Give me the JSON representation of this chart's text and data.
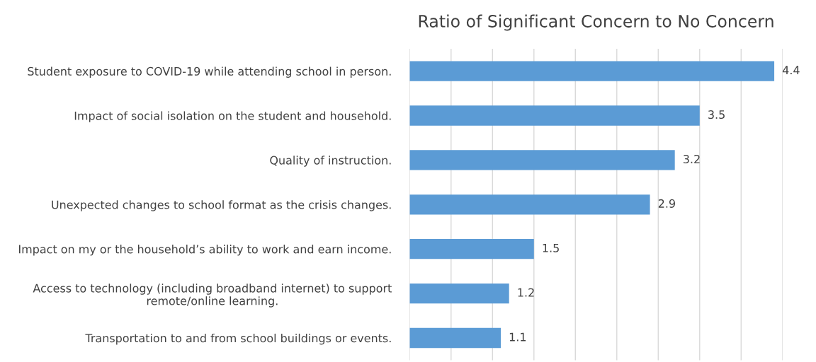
{
  "chart_data": {
    "type": "bar",
    "orientation": "horizontal",
    "title": "Ratio of Significant Concern to No Concern",
    "categories": [
      "Student exposure to COVID-19 while attending school in person.",
      "Impact of social isolation on the student and household.",
      "Quality of instruction.",
      "Unexpected changes to school format as the crisis changes.",
      "Impact on my or the household’s ability to work and earn income.",
      "Access to technology (including broadband internet) to support\nremote/online learning.",
      "Transportation to and from school buildings or events."
    ],
    "values": [
      4.4,
      3.5,
      3.2,
      2.9,
      1.5,
      1.2,
      1.1
    ],
    "color": "#5b9bd5",
    "xlim": [
      0,
      4.5
    ],
    "xticks": [
      {
        "value": 0,
        "label": null
      },
      {
        "value": 0.5,
        "label": null
      },
      {
        "value": 1,
        "label": null
      },
      {
        "value": 1.5,
        "label": null
      },
      {
        "value": 2,
        "label": null
      },
      {
        "value": 2.5,
        "label": null
      },
      {
        "value": 3,
        "label": null
      },
      {
        "value": 3.5,
        "label": null
      },
      {
        "value": 4,
        "label": null
      },
      {
        "value": 4.5,
        "label": null
      }
    ],
    "tick_labels": "y",
    "grid": "x",
    "data_labels": true
  }
}
